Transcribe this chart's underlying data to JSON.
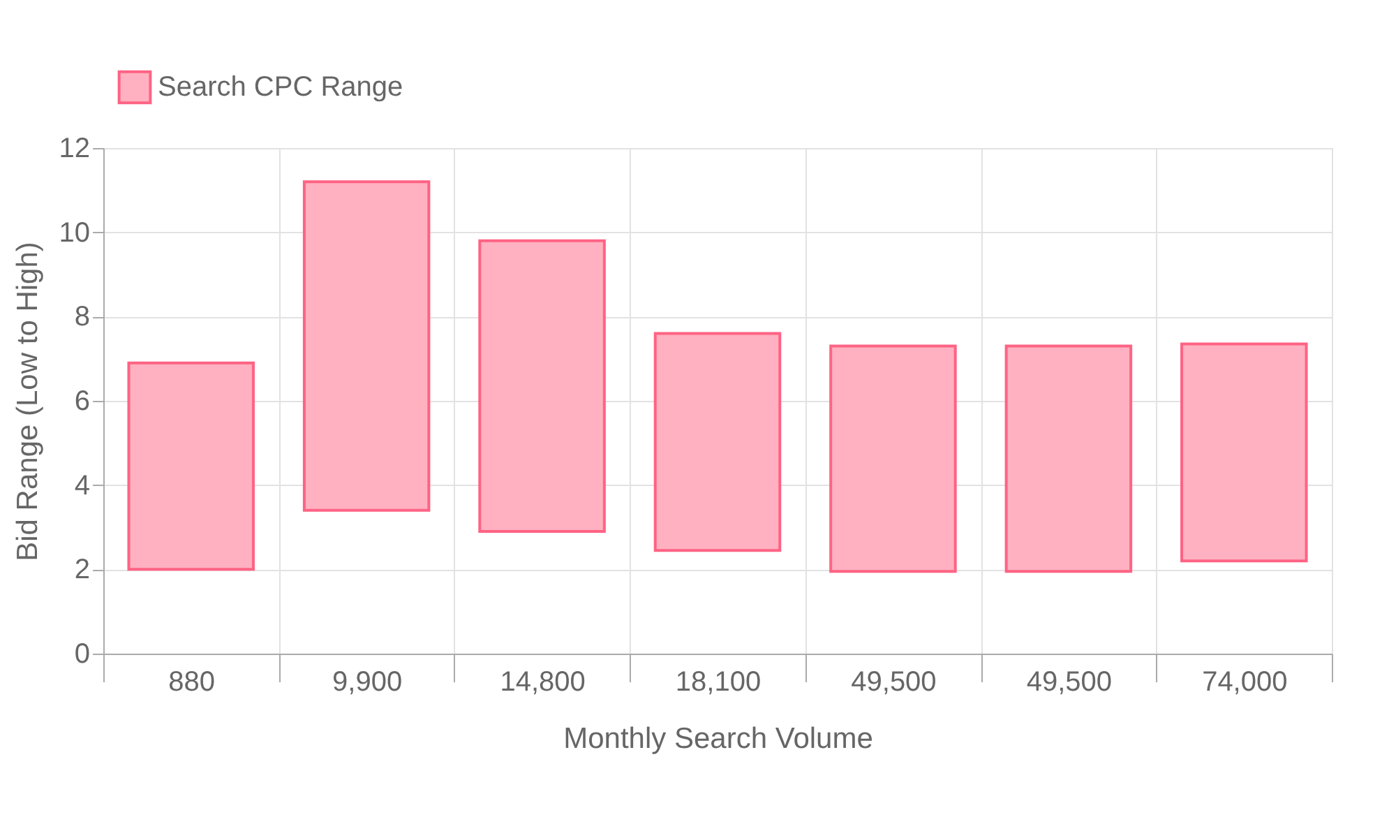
{
  "chart_data": {
    "type": "bar",
    "xlabel": "Monthly Search Volume",
    "ylabel": "Bid Range (Low to High)",
    "categories": [
      "880",
      "9,900",
      "14,800",
      "18,100",
      "49,500",
      "49,500",
      "74,000"
    ],
    "series": [
      {
        "name": "Search CPC Range",
        "color": "#ffb1c1",
        "values": [
          4.9,
          7.8,
          6.9,
          5.15,
          5.35,
          5.35,
          5.15
        ],
        "base": [
          2.0,
          3.4,
          2.9,
          2.45,
          1.95,
          1.95,
          2.2
        ]
      }
    ],
    "ylim": [
      0,
      12
    ],
    "yticks": [
      0,
      2,
      4,
      6,
      8,
      10,
      12
    ],
    "grid": true,
    "legend": "top"
  }
}
